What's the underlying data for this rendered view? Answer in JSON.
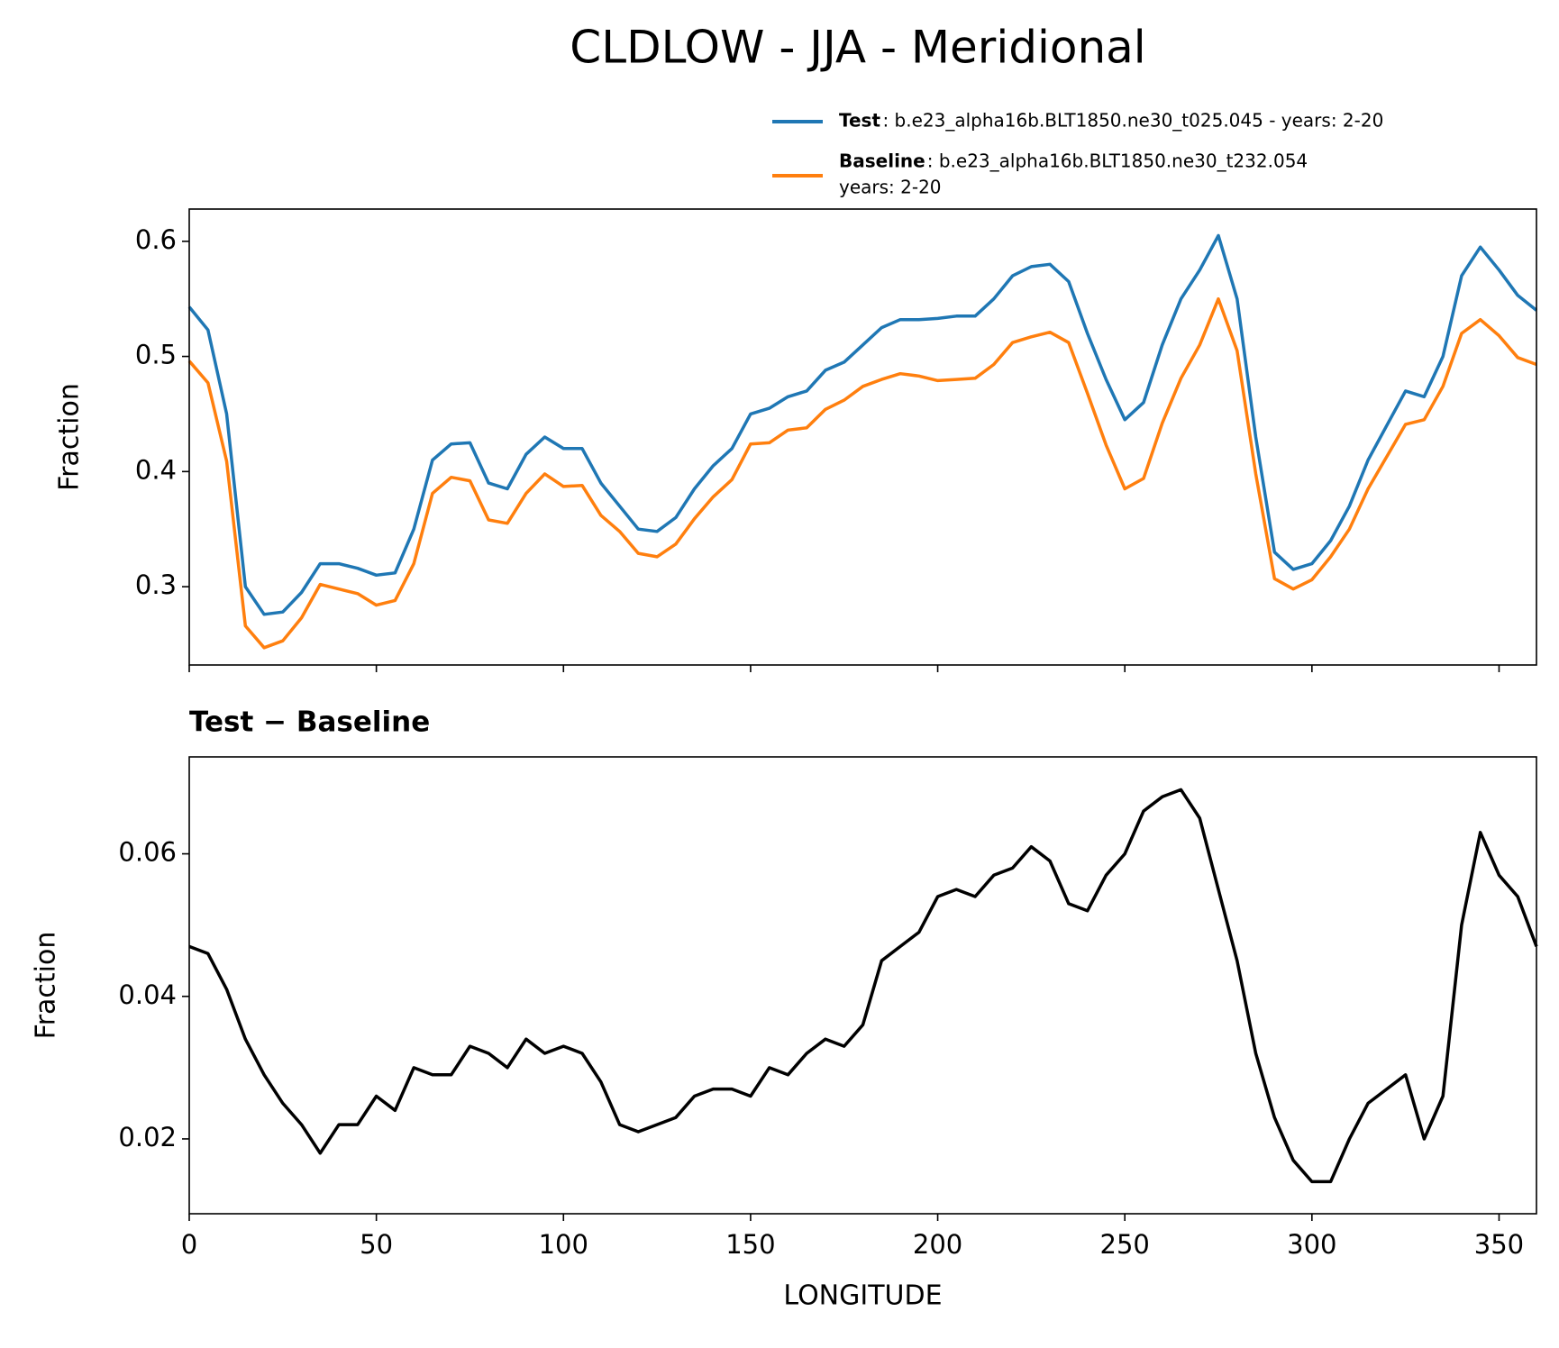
{
  "title": "CLDLOW - JJA - Meridional",
  "chart_data": [
    {
      "type": "line",
      "ylabel": "Fraction",
      "x": [
        0,
        5,
        10,
        15,
        20,
        25,
        30,
        35,
        40,
        45,
        50,
        55,
        60,
        65,
        70,
        75,
        80,
        85,
        90,
        95,
        100,
        105,
        110,
        115,
        120,
        125,
        130,
        135,
        140,
        145,
        150,
        155,
        160,
        165,
        170,
        175,
        180,
        185,
        190,
        195,
        200,
        205,
        210,
        215,
        220,
        225,
        230,
        235,
        240,
        245,
        250,
        255,
        260,
        265,
        270,
        275,
        280,
        285,
        290,
        295,
        300,
        305,
        310,
        315,
        320,
        325,
        330,
        335,
        340,
        345,
        350,
        355,
        360
      ],
      "series": [
        {
          "name": "Test",
          "description": [
            ": b.e23_alpha16b.BLT1850.ne30_t025.045 - years: 2-20"
          ],
          "color": "#1f77b4",
          "values": [
            0.543,
            0.523,
            0.45,
            0.3,
            0.276,
            0.278,
            0.295,
            0.32,
            0.32,
            0.316,
            0.31,
            0.312,
            0.35,
            0.41,
            0.424,
            0.425,
            0.39,
            0.385,
            0.415,
            0.43,
            0.42,
            0.42,
            0.39,
            0.37,
            0.35,
            0.348,
            0.36,
            0.385,
            0.405,
            0.42,
            0.45,
            0.455,
            0.465,
            0.47,
            0.488,
            0.495,
            0.51,
            0.525,
            0.532,
            0.532,
            0.533,
            0.535,
            0.535,
            0.55,
            0.57,
            0.578,
            0.58,
            0.565,
            0.52,
            0.48,
            0.445,
            0.46,
            0.51,
            0.55,
            0.575,
            0.605,
            0.55,
            0.43,
            0.33,
            0.315,
            0.32,
            0.34,
            0.37,
            0.41,
            0.44,
            0.47,
            0.465,
            0.5,
            0.57,
            0.595,
            0.575,
            0.553,
            0.54
          ]
        },
        {
          "name": "Baseline",
          "description": [
            ": b.e23_alpha16b.BLT1850.ne30_t232.054",
            "years: 2-20"
          ],
          "color": "#ff7f0e",
          "values": [
            0.496,
            0.477,
            0.409,
            0.266,
            0.247,
            0.253,
            0.273,
            0.302,
            0.298,
            0.294,
            0.284,
            0.288,
            0.32,
            0.381,
            0.395,
            0.392,
            0.358,
            0.355,
            0.381,
            0.398,
            0.387,
            0.388,
            0.362,
            0.348,
            0.329,
            0.326,
            0.337,
            0.359,
            0.378,
            0.393,
            0.424,
            0.425,
            0.436,
            0.438,
            0.454,
            0.462,
            0.474,
            0.48,
            0.485,
            0.483,
            0.479,
            0.48,
            0.481,
            0.493,
            0.512,
            0.517,
            0.521,
            0.512,
            0.468,
            0.423,
            0.385,
            0.394,
            0.442,
            0.481,
            0.51,
            0.55,
            0.505,
            0.398,
            0.307,
            0.298,
            0.306,
            0.326,
            0.35,
            0.385,
            0.413,
            0.441,
            0.445,
            0.474,
            0.52,
            0.532,
            0.518,
            0.499,
            0.493
          ]
        }
      ],
      "xlim": [
        0,
        360
      ],
      "xticks": [
        0,
        50,
        100,
        150,
        200,
        250,
        300,
        350
      ],
      "ylim": [
        0.232,
        0.628
      ],
      "yticks": [
        0.3,
        0.4,
        0.5,
        0.6
      ],
      "legend": "upper right"
    },
    {
      "type": "line",
      "title": "Test − Baseline",
      "xlabel": "LONGITUDE",
      "ylabel": "Fraction",
      "x": [
        0,
        5,
        10,
        15,
        20,
        25,
        30,
        35,
        40,
        45,
        50,
        55,
        60,
        65,
        70,
        75,
        80,
        85,
        90,
        95,
        100,
        105,
        110,
        115,
        120,
        125,
        130,
        135,
        140,
        145,
        150,
        155,
        160,
        165,
        170,
        175,
        180,
        185,
        190,
        195,
        200,
        205,
        210,
        215,
        220,
        225,
        230,
        235,
        240,
        245,
        250,
        255,
        260,
        265,
        270,
        275,
        280,
        285,
        290,
        295,
        300,
        305,
        310,
        315,
        320,
        325,
        330,
        335,
        340,
        345,
        350,
        355,
        360
      ],
      "series": [
        {
          "color": "#000000",
          "values": [
            0.047,
            0.046,
            0.041,
            0.034,
            0.029,
            0.025,
            0.022,
            0.018,
            0.022,
            0.022,
            0.026,
            0.024,
            0.03,
            0.029,
            0.029,
            0.033,
            0.032,
            0.03,
            0.034,
            0.032,
            0.033,
            0.032,
            0.028,
            0.022,
            0.021,
            0.022,
            0.023,
            0.026,
            0.027,
            0.027,
            0.026,
            0.03,
            0.029,
            0.032,
            0.034,
            0.033,
            0.036,
            0.045,
            0.047,
            0.049,
            0.054,
            0.055,
            0.054,
            0.057,
            0.058,
            0.061,
            0.059,
            0.053,
            0.052,
            0.057,
            0.06,
            0.066,
            0.068,
            0.069,
            0.065,
            0.055,
            0.045,
            0.032,
            0.023,
            0.017,
            0.014,
            0.014,
            0.02,
            0.025,
            0.027,
            0.029,
            0.02,
            0.026,
            0.05,
            0.063,
            0.057,
            0.054,
            0.047
          ]
        }
      ],
      "xlim": [
        0,
        360
      ],
      "xticks": [
        0,
        50,
        100,
        150,
        200,
        250,
        300,
        350
      ],
      "ylim": [
        0.0095,
        0.0736
      ],
      "yticks": [
        0.02,
        0.04,
        0.06
      ]
    }
  ]
}
